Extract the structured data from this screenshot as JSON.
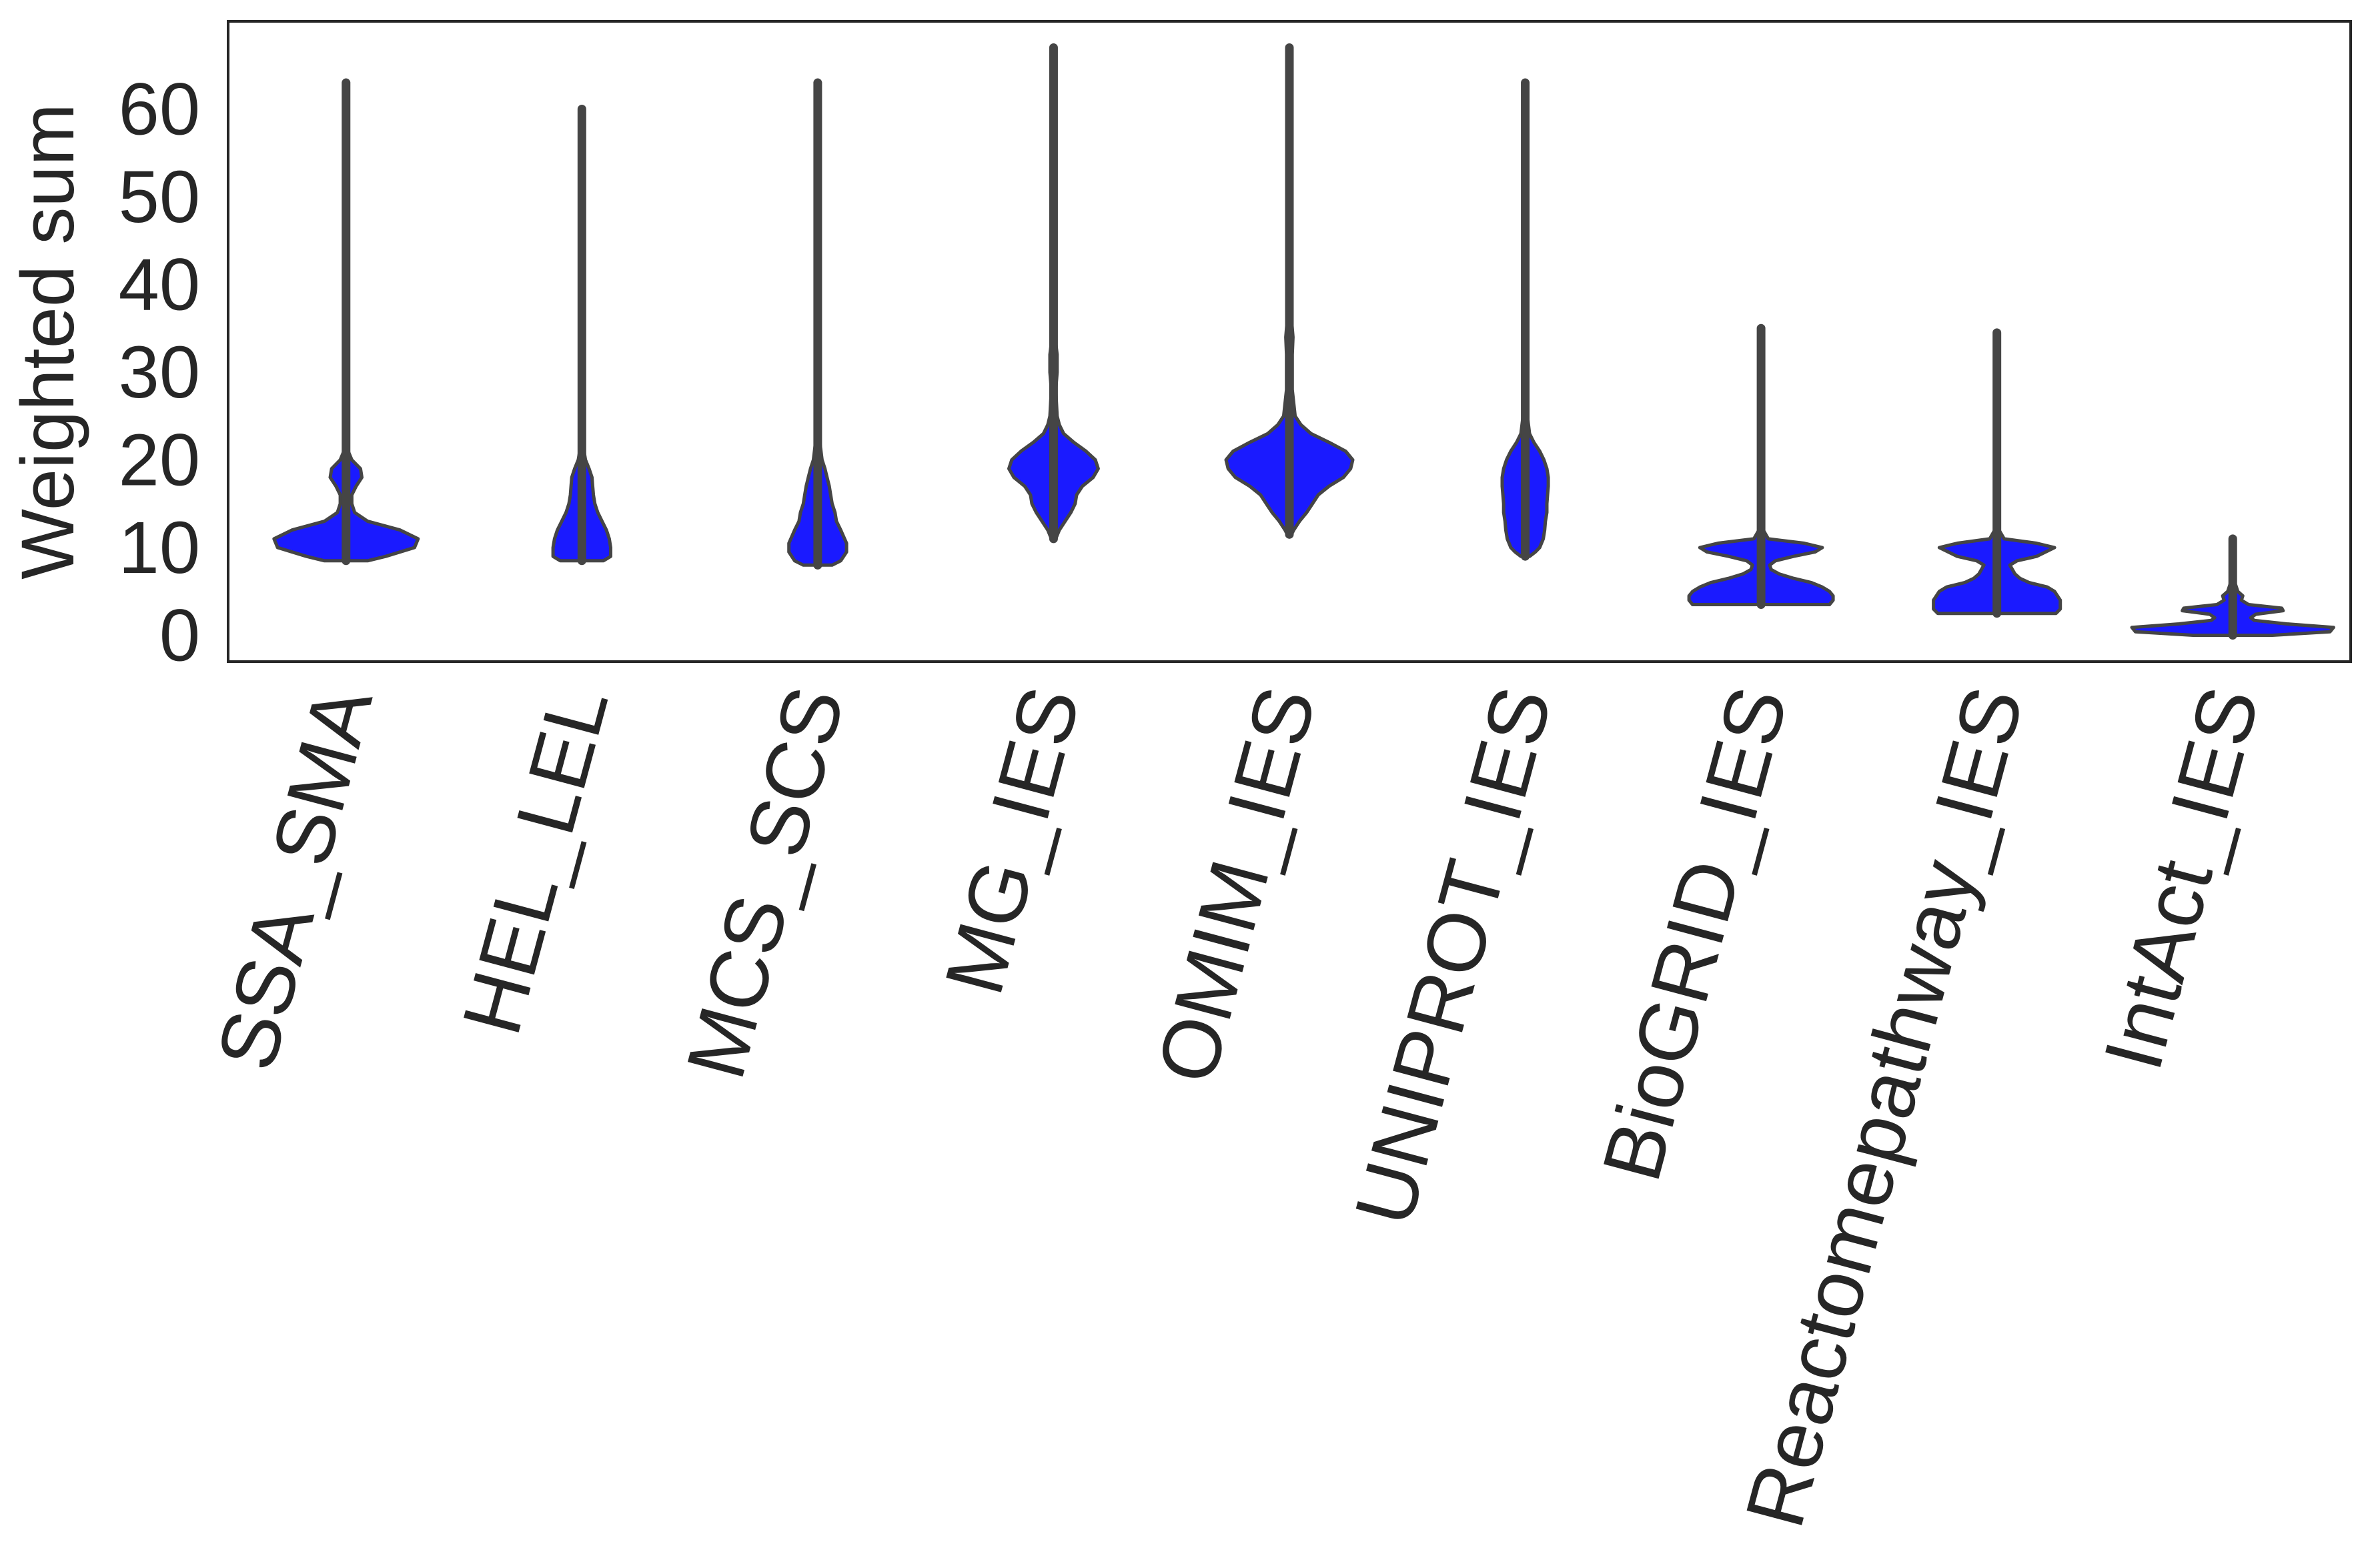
{
  "chart_data": {
    "type": "violin",
    "title": "",
    "xlabel": "",
    "ylabel": "Weighted sum",
    "ylim": [
      -3,
      70
    ],
    "yticks": [
      0,
      10,
      20,
      30,
      40,
      50,
      60
    ],
    "grid": false,
    "fill_color": "#1a1aff",
    "line_color": "#454545",
    "categories": [
      "SSA_SMA",
      "HEL_LEL",
      "MCS_SCS",
      "MG_IES",
      "OMIM_IES",
      "UNIPROT_IES",
      "BioGRID_IES",
      "Reactomepathway_IES",
      "IntAct_IES"
    ],
    "violins": [
      {
        "category": "SSA_SMA",
        "min": 8.5,
        "max": 63,
        "profile": [
          [
            8.5,
            0.3
          ],
          [
            9,
            0.55
          ],
          [
            10,
            0.95
          ],
          [
            11,
            1.0
          ],
          [
            12,
            0.75
          ],
          [
            13,
            0.3
          ],
          [
            14,
            0.12
          ],
          [
            15,
            0.08
          ],
          [
            16,
            0.08
          ],
          [
            17,
            0.14
          ],
          [
            18,
            0.22
          ],
          [
            19,
            0.2
          ],
          [
            20,
            0.08
          ],
          [
            21,
            0.03
          ],
          [
            25,
            0.02
          ],
          [
            63,
            0.02
          ]
        ]
      },
      {
        "category": "HEL_LEL",
        "min": 8.5,
        "max": 60,
        "profile": [
          [
            8.5,
            0.3
          ],
          [
            9,
            0.4
          ],
          [
            10,
            0.4
          ],
          [
            11,
            0.38
          ],
          [
            12,
            0.34
          ],
          [
            13,
            0.28
          ],
          [
            14,
            0.22
          ],
          [
            15,
            0.18
          ],
          [
            16,
            0.16
          ],
          [
            17,
            0.15
          ],
          [
            18,
            0.14
          ],
          [
            19,
            0.1
          ],
          [
            20,
            0.05
          ],
          [
            21,
            0.03
          ],
          [
            25,
            0.02
          ],
          [
            60,
            0.02
          ]
        ]
      },
      {
        "category": "MCS_SCS",
        "min": 8,
        "max": 63,
        "profile": [
          [
            8,
            0.2
          ],
          [
            8.5,
            0.32
          ],
          [
            9.5,
            0.4
          ],
          [
            10.5,
            0.4
          ],
          [
            12,
            0.32
          ],
          [
            13,
            0.26
          ],
          [
            14,
            0.24
          ],
          [
            15,
            0.2
          ],
          [
            16,
            0.18
          ],
          [
            17,
            0.16
          ],
          [
            18,
            0.13
          ],
          [
            19,
            0.1
          ],
          [
            20,
            0.06
          ],
          [
            22,
            0.03
          ],
          [
            25,
            0.02
          ],
          [
            63,
            0.02
          ]
        ]
      },
      {
        "category": "MG_IES",
        "min": 11,
        "max": 67,
        "profile": [
          [
            11,
            0.03
          ],
          [
            12,
            0.08
          ],
          [
            13,
            0.16
          ],
          [
            14,
            0.24
          ],
          [
            15,
            0.3
          ],
          [
            16,
            0.32
          ],
          [
            17,
            0.4
          ],
          [
            18,
            0.55
          ],
          [
            19,
            0.62
          ],
          [
            20,
            0.58
          ],
          [
            21,
            0.45
          ],
          [
            22,
            0.28
          ],
          [
            23,
            0.14
          ],
          [
            24,
            0.08
          ],
          [
            25,
            0.05
          ],
          [
            28,
            0.03
          ],
          [
            30,
            0.05
          ],
          [
            32,
            0.05
          ],
          [
            34,
            0.02
          ],
          [
            40,
            0.02
          ],
          [
            67,
            0.02
          ]
        ]
      },
      {
        "category": "OMIM_IES",
        "min": 11.5,
        "max": 67,
        "profile": [
          [
            11.5,
            0.03
          ],
          [
            12,
            0.06
          ],
          [
            13,
            0.14
          ],
          [
            14,
            0.24
          ],
          [
            15,
            0.32
          ],
          [
            16,
            0.4
          ],
          [
            17,
            0.55
          ],
          [
            18,
            0.75
          ],
          [
            19,
            0.85
          ],
          [
            20,
            0.88
          ],
          [
            21,
            0.78
          ],
          [
            22,
            0.55
          ],
          [
            23,
            0.3
          ],
          [
            24,
            0.16
          ],
          [
            25,
            0.08
          ],
          [
            28,
            0.04
          ],
          [
            32,
            0.04
          ],
          [
            34,
            0.05
          ],
          [
            36,
            0.03
          ],
          [
            40,
            0.02
          ],
          [
            67,
            0.02
          ]
        ]
      },
      {
        "category": "UNIPROT_IES",
        "min": 9,
        "max": 63,
        "profile": [
          [
            9,
            0.06
          ],
          [
            9.5,
            0.14
          ],
          [
            10,
            0.2
          ],
          [
            11,
            0.25
          ],
          [
            12,
            0.27
          ],
          [
            13,
            0.28
          ],
          [
            14,
            0.3
          ],
          [
            15,
            0.3
          ],
          [
            16,
            0.31
          ],
          [
            17,
            0.32
          ],
          [
            18,
            0.32
          ],
          [
            19,
            0.3
          ],
          [
            20,
            0.26
          ],
          [
            21,
            0.2
          ],
          [
            22,
            0.12
          ],
          [
            23,
            0.06
          ],
          [
            25,
            0.03
          ],
          [
            30,
            0.02
          ],
          [
            63,
            0.02
          ]
        ]
      },
      {
        "category": "BioGRID_IES",
        "min": 3.5,
        "max": 35,
        "profile": [
          [
            3.5,
            0.95
          ],
          [
            4,
            1.0
          ],
          [
            4.5,
            1.0
          ],
          [
            5,
            0.95
          ],
          [
            5.5,
            0.85
          ],
          [
            6,
            0.7
          ],
          [
            6.5,
            0.45
          ],
          [
            7,
            0.25
          ],
          [
            7.5,
            0.14
          ],
          [
            8,
            0.12
          ],
          [
            8.5,
            0.2
          ],
          [
            9,
            0.45
          ],
          [
            9.5,
            0.75
          ],
          [
            10,
            0.85
          ],
          [
            10.5,
            0.6
          ],
          [
            11,
            0.1
          ],
          [
            12,
            0.03
          ],
          [
            15,
            0.02
          ],
          [
            35,
            0.02
          ]
        ]
      },
      {
        "category": "Reactomepathway_IES",
        "min": 2.5,
        "max": 34.5,
        "profile": [
          [
            2.5,
            0.82
          ],
          [
            3,
            0.88
          ],
          [
            4,
            0.88
          ],
          [
            5,
            0.8
          ],
          [
            5.5,
            0.7
          ],
          [
            6,
            0.45
          ],
          [
            6.5,
            0.32
          ],
          [
            7,
            0.25
          ],
          [
            8,
            0.18
          ],
          [
            8.5,
            0.28
          ],
          [
            9,
            0.55
          ],
          [
            10,
            0.8
          ],
          [
            10.5,
            0.55
          ],
          [
            11,
            0.1
          ],
          [
            12,
            0.03
          ],
          [
            15,
            0.02
          ],
          [
            34.5,
            0.02
          ]
        ]
      },
      {
        "category": "IntAct_IES",
        "min": 0,
        "max": 11,
        "profile": [
          [
            0,
            0.55
          ],
          [
            0.4,
            1.35
          ],
          [
            0.9,
            1.4
          ],
          [
            1.3,
            0.75
          ],
          [
            1.7,
            0.3
          ],
          [
            2,
            0.25
          ],
          [
            2.4,
            0.32
          ],
          [
            2.8,
            0.7
          ],
          [
            3.1,
            0.68
          ],
          [
            3.5,
            0.22
          ],
          [
            4,
            0.12
          ],
          [
            4.5,
            0.14
          ],
          [
            5,
            0.07
          ],
          [
            6,
            0.03
          ],
          [
            7,
            0.03
          ],
          [
            8,
            0.02
          ],
          [
            11,
            0.02
          ]
        ]
      }
    ]
  }
}
